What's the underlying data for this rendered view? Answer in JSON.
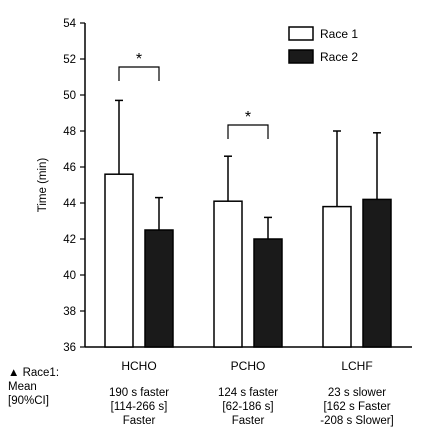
{
  "chart_data": {
    "type": "bar",
    "categories": [
      "HCHO",
      "PCHO",
      "LCHF"
    ],
    "ylabel": "Time (min)",
    "xlabel": "",
    "ylim": [
      36,
      54
    ],
    "yticks": [
      36,
      38,
      40,
      42,
      44,
      46,
      48,
      50,
      52,
      54
    ],
    "series": [
      {
        "name": "Race 1",
        "values": [
          45.6,
          44.1,
          43.8
        ],
        "error_upper": [
          49.7,
          46.6,
          48.0
        ],
        "fill": "#ffffff"
      },
      {
        "name": "Race 2",
        "values": [
          42.5,
          42.0,
          44.2
        ],
        "error_upper": [
          44.3,
          43.2,
          47.9
        ],
        "fill": "#1a1a1a"
      }
    ],
    "legend_position": "top-right",
    "significance": [
      {
        "category": "HCHO",
        "label": "*"
      },
      {
        "category": "PCHO",
        "label": "*"
      }
    ],
    "grid": false
  },
  "footer": {
    "row_label": [
      "▲ Race1:",
      "Mean",
      "[90%CI]"
    ],
    "group_notes": [
      {
        "lines": [
          "190 s faster",
          "[114-266 s]",
          "Faster"
        ]
      },
      {
        "lines": [
          "124 s faster",
          "[62-186 s]",
          "Faster"
        ]
      },
      {
        "lines": [
          "23 s slower",
          "[162 s Faster",
          "-208 s Slower]"
        ]
      }
    ]
  }
}
